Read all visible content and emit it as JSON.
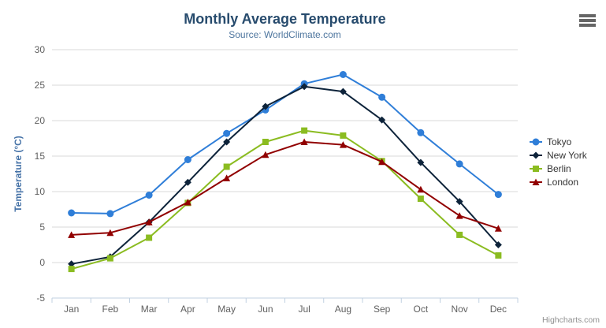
{
  "title": "Monthly Average Temperature",
  "subtitle": "Source: WorldClimate.com",
  "credits": "Highcharts.com",
  "export_menu_icon": "hamburger-icon",
  "colors": {
    "title": "#274b6d",
    "subtitle": "#4d759e",
    "axis_labels": "#606060",
    "y_axis_title": "#4572a7",
    "gridline": "#d8d8d8",
    "axis_line": "#c0d0e0",
    "legend_text": "#333333",
    "credits_text": "#909090",
    "burger_icon": "#666666"
  },
  "chart_data": {
    "type": "line",
    "title": "Monthly Average Temperature",
    "subtitle": "Source: WorldClimate.com",
    "xlabel": "",
    "ylabel": "Temperature (°C)",
    "ylim": [
      -5,
      30
    ],
    "ytick_step": 5,
    "yticks": [
      30,
      25,
      20,
      15,
      10,
      5,
      0,
      -5
    ],
    "grid": true,
    "legend_position": "right",
    "categories": [
      "Jan",
      "Feb",
      "Mar",
      "Apr",
      "May",
      "Jun",
      "Jul",
      "Aug",
      "Sep",
      "Oct",
      "Nov",
      "Dec"
    ],
    "series": [
      {
        "name": "Tokyo",
        "color": "#2f7ed8",
        "marker": "circle",
        "values": [
          7.0,
          6.9,
          9.5,
          14.5,
          18.2,
          21.5,
          25.2,
          26.5,
          23.3,
          18.3,
          13.9,
          9.6
        ]
      },
      {
        "name": "New York",
        "color": "#0d233a",
        "marker": "diamond",
        "values": [
          -0.2,
          0.8,
          5.7,
          11.3,
          17.0,
          22.0,
          24.8,
          24.1,
          20.1,
          14.1,
          8.6,
          2.5
        ]
      },
      {
        "name": "Berlin",
        "color": "#8bbc21",
        "marker": "square",
        "values": [
          -0.9,
          0.6,
          3.5,
          8.4,
          13.5,
          17.0,
          18.6,
          17.9,
          14.3,
          9.0,
          3.9,
          1.0
        ]
      },
      {
        "name": "London",
        "color": "#910000",
        "marker": "triangle",
        "values": [
          3.9,
          4.2,
          5.7,
          8.5,
          11.9,
          15.2,
          17.0,
          16.6,
          14.2,
          10.3,
          6.6,
          4.8
        ]
      }
    ]
  }
}
